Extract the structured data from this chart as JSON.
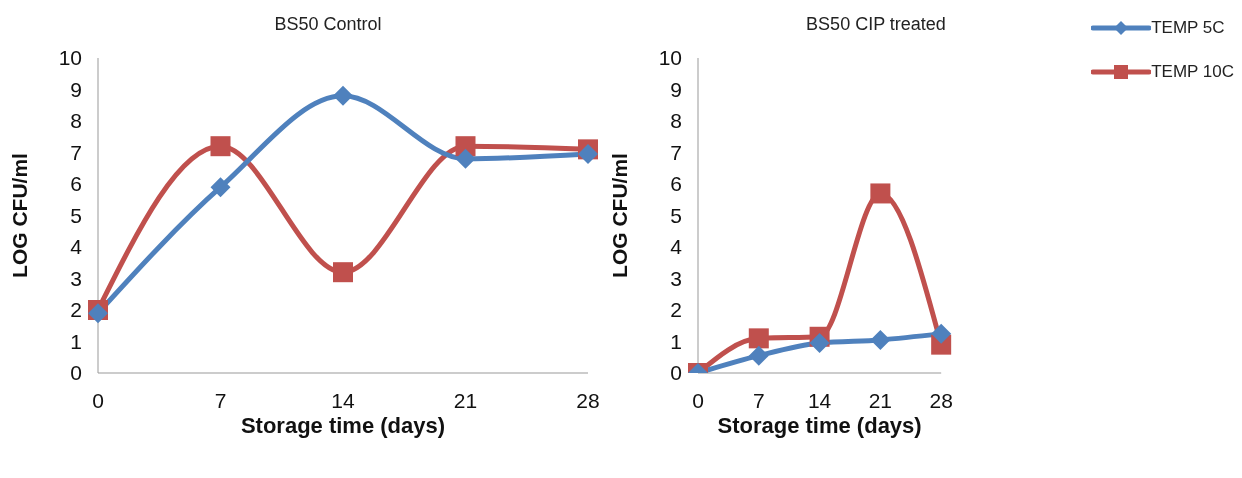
{
  "chart_data": [
    {
      "type": "line",
      "title": "BS50 Control",
      "xlabel": "Storage time (days)",
      "ylabel": "LOG CFU/ml",
      "categories": [
        "0",
        "7",
        "14",
        "21",
        "28"
      ],
      "ylim": [
        0,
        10
      ],
      "yticks": [
        0,
        1,
        2,
        3,
        4,
        5,
        6,
        7,
        8,
        9,
        10
      ],
      "grid": false,
      "legend": false,
      "series": [
        {
          "color": "#4f81bd",
          "marker": "diamond",
          "values": [
            1.9,
            5.9,
            8.8,
            6.8,
            6.95
          ]
        },
        {
          "color": "#c0504d",
          "marker": "square",
          "values": [
            2.0,
            7.2,
            3.2,
            7.2,
            7.1
          ]
        }
      ]
    },
    {
      "type": "line",
      "title": "BS50 CIP treated",
      "xlabel": "Storage time (days)",
      "ylabel": "LOG CFU/ml",
      "categories": [
        "0",
        "7",
        "14",
        "21",
        "28"
      ],
      "ylim": [
        0,
        10
      ],
      "yticks": [
        0,
        1,
        2,
        3,
        4,
        5,
        6,
        7,
        8,
        9,
        10
      ],
      "grid": false,
      "legend": "top right",
      "series": [
        {
          "name": "TEMP 5C",
          "color": "#4f81bd",
          "marker": "diamond",
          "values": [
            0,
            0.55,
            0.95,
            1.05,
            1.25
          ]
        },
        {
          "name": "TEMP 10C",
          "color": "#c0504d",
          "marker": "square",
          "values": [
            0,
            1.1,
            1.15,
            5.7,
            0.9
          ]
        }
      ]
    }
  ]
}
